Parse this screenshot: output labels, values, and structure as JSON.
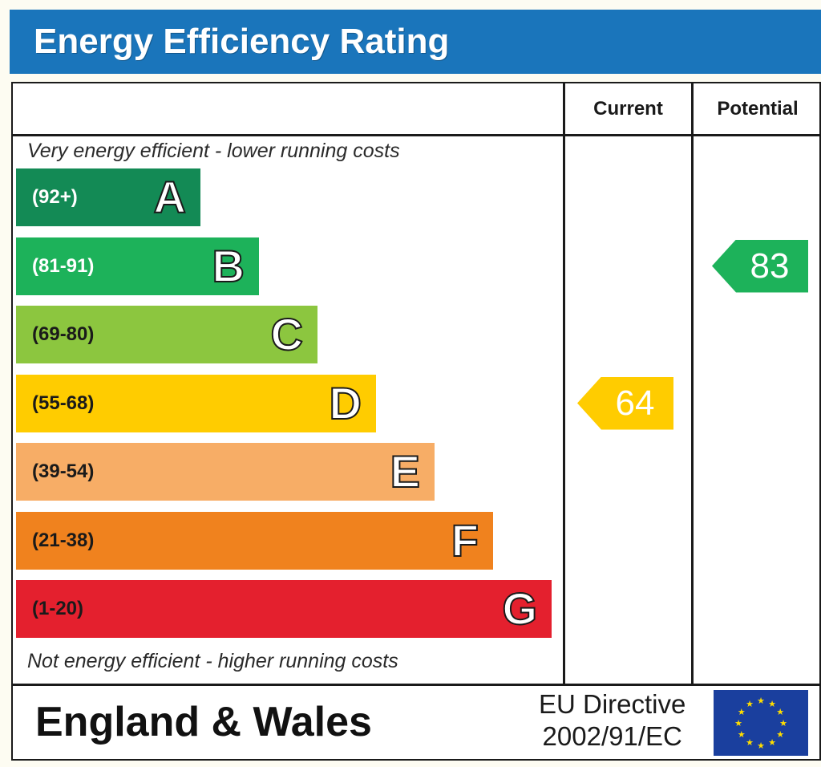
{
  "header": {
    "title": "Energy Efficiency Rating"
  },
  "columns": {
    "current": "Current",
    "potential": "Potential"
  },
  "notes": {
    "top": "Very energy efficient - lower running costs",
    "bottom": "Not energy efficient - higher running costs"
  },
  "footer": {
    "region": "England & Wales",
    "directive_line1": "EU Directive",
    "directive_line2": "2002/91/EC",
    "flag_icon": "eu-flag-icon"
  },
  "chart_data": {
    "type": "bar",
    "title": "Energy Efficiency Rating",
    "categories": [
      "A",
      "B",
      "C",
      "D",
      "E",
      "F",
      "G"
    ],
    "ranges": [
      "(92+)",
      "(81-91)",
      "(69-80)",
      "(55-68)",
      "(39-54)",
      "(21-38)",
      "(1-20)"
    ],
    "colors": [
      "#138a55",
      "#1db25a",
      "#8cc63f",
      "#ffcc00",
      "#f7ad66",
      "#f0821e",
      "#e4202e"
    ],
    "range_text_colors": [
      "#ffffff",
      "#ffffff",
      "#1a1a1a",
      "#1a1a1a",
      "#1a1a1a",
      "#1a1a1a",
      "#1a1a1a"
    ],
    "current": {
      "value": 64,
      "band": "D",
      "color": "#ffcc00"
    },
    "potential": {
      "value": 83,
      "band": "B",
      "color": "#1db25a"
    }
  }
}
